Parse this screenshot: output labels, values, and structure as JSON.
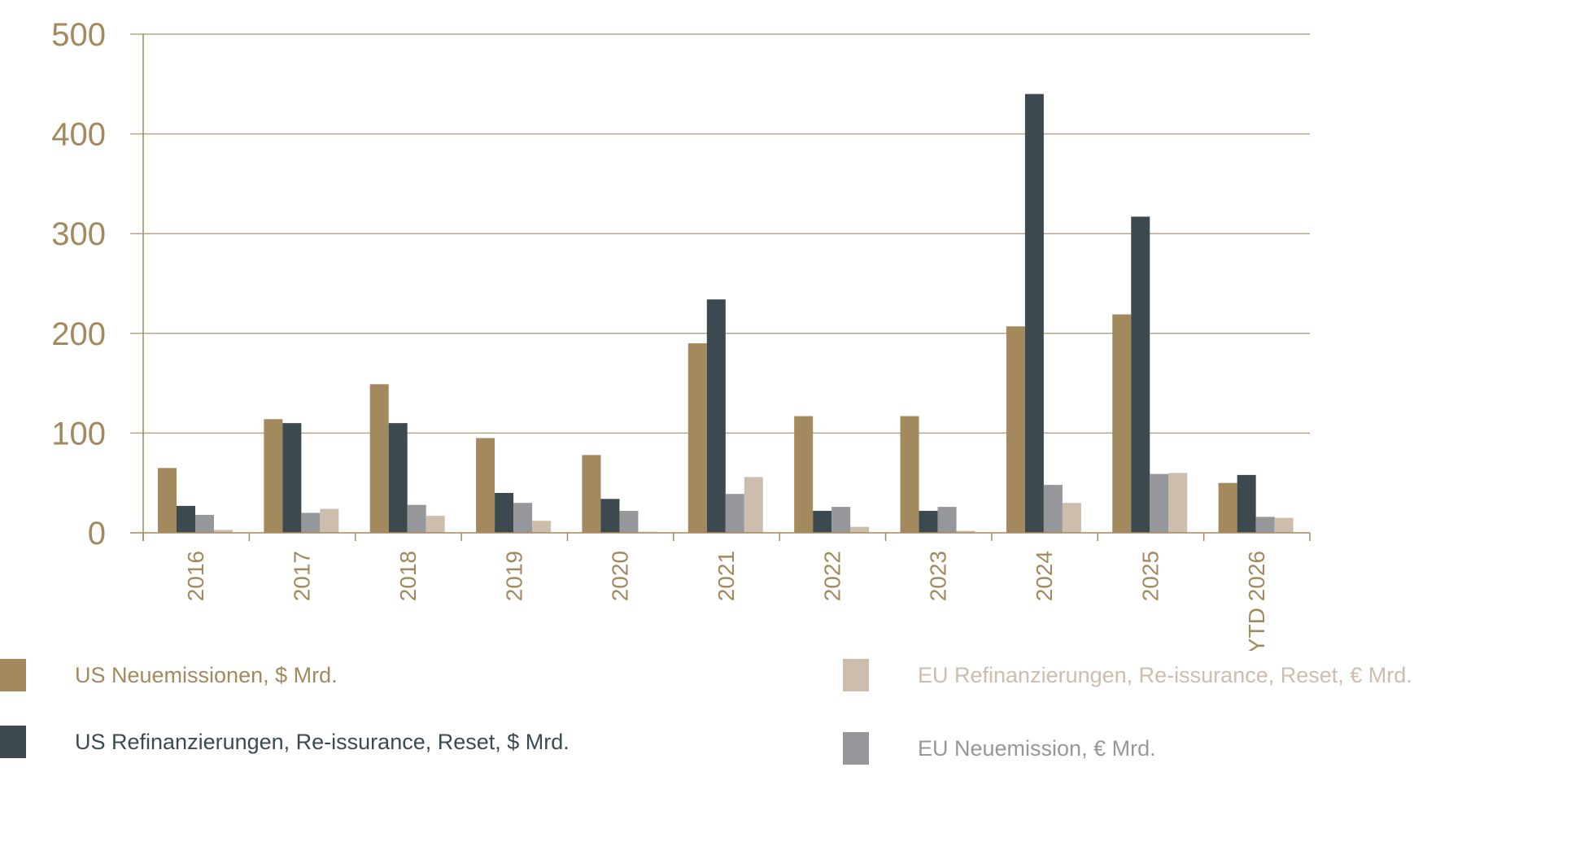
{
  "chart_data": {
    "type": "bar",
    "categories": [
      "2016",
      "2017",
      "2018",
      "2019",
      "2020",
      "2021",
      "2022",
      "2023",
      "2024",
      "2025",
      "YTD 2026"
    ],
    "ylim": [
      0,
      500
    ],
    "yticks": [
      0,
      100,
      200,
      300,
      400,
      500
    ],
    "ytick_labels": [
      "0",
      "100",
      "200",
      "300",
      "400",
      "500"
    ],
    "grid": true,
    "legend_position": "bottom",
    "series": [
      {
        "name": "US Neuemissionen,  $ Mrd.",
        "color": "#A3895E",
        "values": [
          65,
          114,
          149,
          95,
          78,
          190,
          117,
          117,
          207,
          219,
          50
        ]
      },
      {
        "name": "US Refinanzierungen, Re-issurance, Reset, $ Mrd.",
        "color": "#3C4A50",
        "values": [
          27,
          110,
          110,
          40,
          34,
          234,
          22,
          22,
          440,
          317,
          58
        ]
      },
      {
        "name": "EU Neuemission, € Mrd.",
        "color": "#96979B",
        "values": [
          18,
          20,
          28,
          30,
          22,
          39,
          26,
          26,
          48,
          59,
          16
        ]
      },
      {
        "name": "EU Refinanzierungen, Re-issurance, Reset, € Mrd.",
        "color": "#CDBDAD",
        "values": [
          3,
          24,
          17,
          12,
          1,
          56,
          6,
          2,
          30,
          60,
          15
        ]
      }
    ]
  },
  "colors": {
    "axis": "#A3895E",
    "grid": "#B5A68A",
    "tick_text": "#A3895E"
  }
}
